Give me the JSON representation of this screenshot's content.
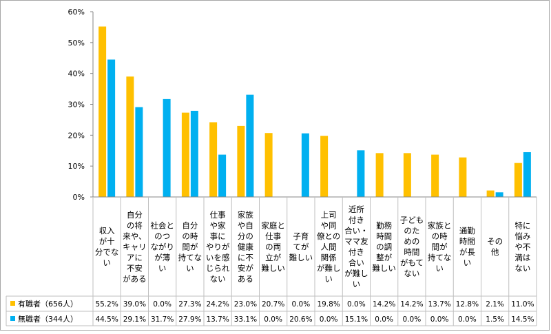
{
  "chart_data": {
    "type": "bar",
    "title": "",
    "xlabel": "",
    "ylabel": "",
    "ylim": [
      0,
      60
    ],
    "yticks": [
      "0%",
      "10%",
      "20%",
      "30%",
      "40%",
      "50%",
      "60%"
    ],
    "grid": false,
    "legend": "bottom-left (data table)",
    "categories": [
      "収入が十分でない",
      "自分の将来や、キャリアに不安がある",
      "社会とのつながりが薄い",
      "自分の時間が持てない",
      "仕事や家事にやりがいを感じられない",
      "家族や自分の健康に不安がある",
      "家庭と仕事の両立が難しい",
      "子育てが難しい",
      "上司や同僚との人間関係が難しい",
      "近所付き合い・ママ友付き合いが難しい",
      "勤務時間の調整が難しい",
      "子どものための時間がもてない",
      "家族との時間が持てない",
      "通勤時間が長い",
      "その他",
      "特に悩みや不満はない"
    ],
    "category_lines": [
      [
        "収入",
        "が十",
        "分でな",
        "い"
      ],
      [
        "自分",
        "の将",
        "来や、",
        "キャリ",
        "アに",
        "不安",
        "がある"
      ],
      [
        "社会と",
        "のつ",
        "ながり",
        "が薄",
        "い"
      ],
      [
        "自分",
        "の時",
        "間が",
        "持てな",
        "い"
      ],
      [
        "仕事",
        "や家",
        "事に",
        "やりが",
        "いを感",
        "じられ",
        "ない"
      ],
      [
        "家族",
        "や自",
        "分の",
        "健康",
        "に不",
        "安が",
        "ある"
      ],
      [
        "家庭と",
        "仕事",
        "の両",
        "立が",
        "難しい"
      ],
      [
        "子育",
        "てが",
        "難しい"
      ],
      [
        "上司",
        "や同",
        "僚との",
        "人間",
        "関係",
        "が難し",
        "い"
      ],
      [
        "近所",
        "付き",
        "合い・",
        "ママ友",
        "付き",
        "合い",
        "が難し",
        "い"
      ],
      [
        "勤務",
        "時間",
        "の調",
        "整が",
        "難しい"
      ],
      [
        "子ども",
        "のた",
        "めの",
        "時間",
        "がもて",
        "ない"
      ],
      [
        "家族と",
        "の時",
        "間が",
        "持てな",
        "い"
      ],
      [
        "通勤",
        "時間",
        "が長",
        "い"
      ],
      [
        "その",
        "他"
      ],
      [
        "特に",
        "悩み",
        "や不",
        "満は",
        "ない"
      ]
    ],
    "series": [
      {
        "name": "有職者（656人）",
        "color": "#ffc000",
        "values": [
          55.2,
          39.0,
          0.0,
          27.3,
          24.2,
          23.0,
          20.7,
          0.0,
          19.8,
          0.0,
          14.2,
          14.2,
          13.7,
          12.8,
          2.1,
          11.0
        ],
        "labels": [
          "55.2%",
          "39.0%",
          "0.0%",
          "27.3%",
          "24.2%",
          "23.0%",
          "20.7%",
          "0.0%",
          "19.8%",
          "0.0%",
          "14.2%",
          "14.2%",
          "13.7%",
          "12.8%",
          "2.1%",
          "11.0%"
        ]
      },
      {
        "name": "無職者（344人）",
        "color": "#00b0f0",
        "values": [
          44.5,
          29.1,
          31.7,
          27.9,
          13.7,
          33.1,
          0.0,
          20.6,
          0.0,
          15.1,
          0.0,
          0.0,
          0.0,
          0.0,
          1.5,
          14.5
        ],
        "labels": [
          "44.5%",
          "29.1%",
          "31.7%",
          "27.9%",
          "13.7%",
          "33.1%",
          "0.0%",
          "20.6%",
          "0.0%",
          "15.1%",
          "0.0%",
          "0.0%",
          "0.0%",
          "0.0%",
          "1.5%",
          "14.5%"
        ]
      }
    ]
  }
}
